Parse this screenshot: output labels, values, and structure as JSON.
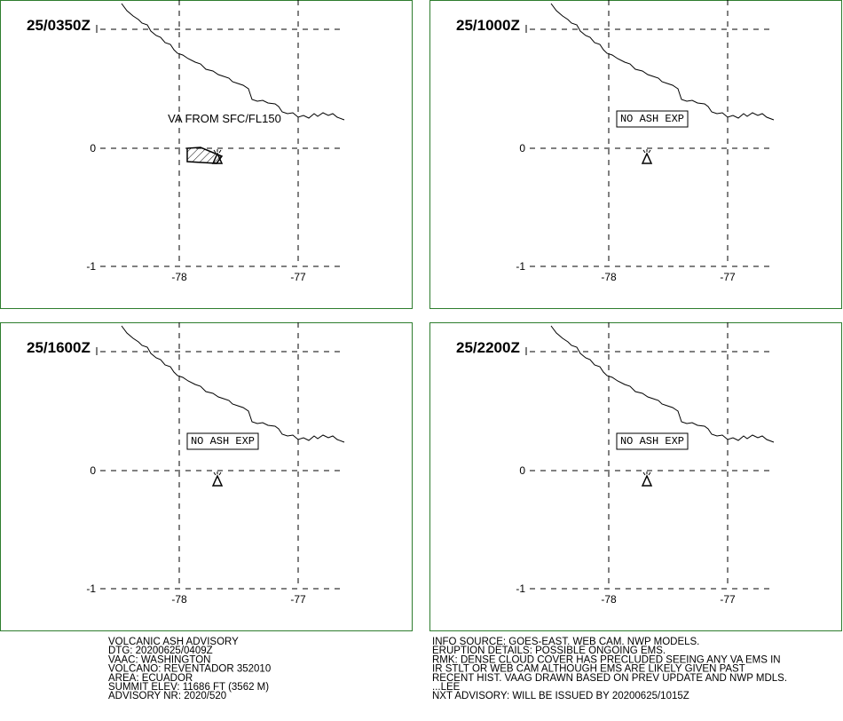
{
  "panels": [
    {
      "time": "25/0350Z",
      "note": "VA FROM SFC/FL150",
      "boxed": false,
      "ash": true
    },
    {
      "time": "25/1000Z",
      "note": "NO ASH EXP",
      "boxed": true,
      "ash": false
    },
    {
      "time": "25/1600Z",
      "note": "NO ASH EXP",
      "boxed": true,
      "ash": false
    },
    {
      "time": "25/2200Z",
      "note": "NO ASH EXP",
      "boxed": true,
      "ash": false
    }
  ],
  "axes": {
    "lon_ticks": [
      -78,
      -77
    ],
    "lat_ticks": [
      0,
      -1
    ]
  },
  "advisory": {
    "left": [
      "VOLCANIC ASH ADVISORY",
      "DTG: 20200625/0409Z",
      "VAAC: WASHINGTON",
      "VOLCANO: REVENTADOR 352010",
      "AREA: ECUADOR",
      "SUMMIT ELEV: 11686 FT (3562 M)",
      "ADVISORY NR: 2020/520"
    ],
    "right": [
      "INFO SOURCE: GOES-EAST. WEB CAM. NWP MODELS.",
      "ERUPTION DETAILS: POSSIBLE ONGOING EMS.",
      "RMK: DENSE CLOUD COVER HAS PRECLUDED SEEING ANY VA EMS IN",
      "IR STLT OR WEB CAM ALTHOUGH EMS ARE LIKELY GIVEN PAST",
      "RECENT HIST. VAAG DRAWN BASED ON PREV UPDATE AND NWP MDLS.",
      "...LEE",
      "NXT ADVISORY: WILL BE ISSUED BY 20200625/1015Z"
    ]
  }
}
